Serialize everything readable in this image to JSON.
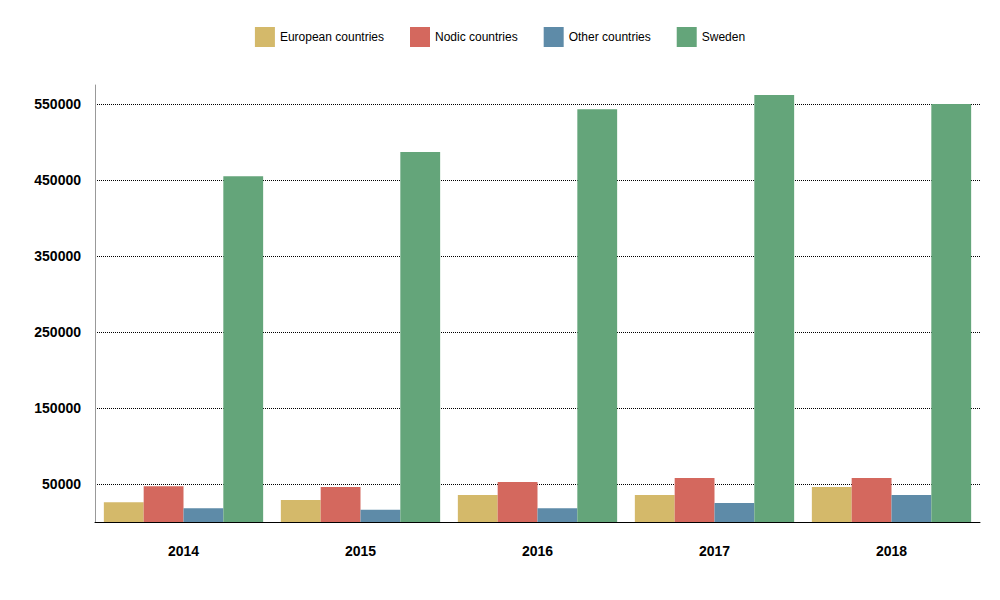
{
  "chart_data": {
    "type": "bar",
    "categories": [
      "2014",
      "2015",
      "2016",
      "2017",
      "2018"
    ],
    "series": [
      {
        "name": "European countries",
        "color": "#D4B96A",
        "values": [
          26000,
          29000,
          35500,
          35500,
          46000
        ]
      },
      {
        "name": "Nodic countries",
        "color": "#D4685E",
        "values": [
          47000,
          46000,
          52600,
          58000,
          58000
        ]
      },
      {
        "name": "Other countries",
        "color": "#5E8BA8",
        "values": [
          18000,
          16000,
          18000,
          25000,
          35500
        ]
      },
      {
        "name": "Sweden",
        "color": "#64A57A",
        "values": [
          455000,
          487000,
          543000,
          562000,
          550000
        ]
      }
    ],
    "ylim": [
      0,
      575000
    ],
    "yticks": [
      50000,
      150000,
      250000,
      350000,
      450000,
      550000
    ],
    "grid": true,
    "legend": "top"
  }
}
